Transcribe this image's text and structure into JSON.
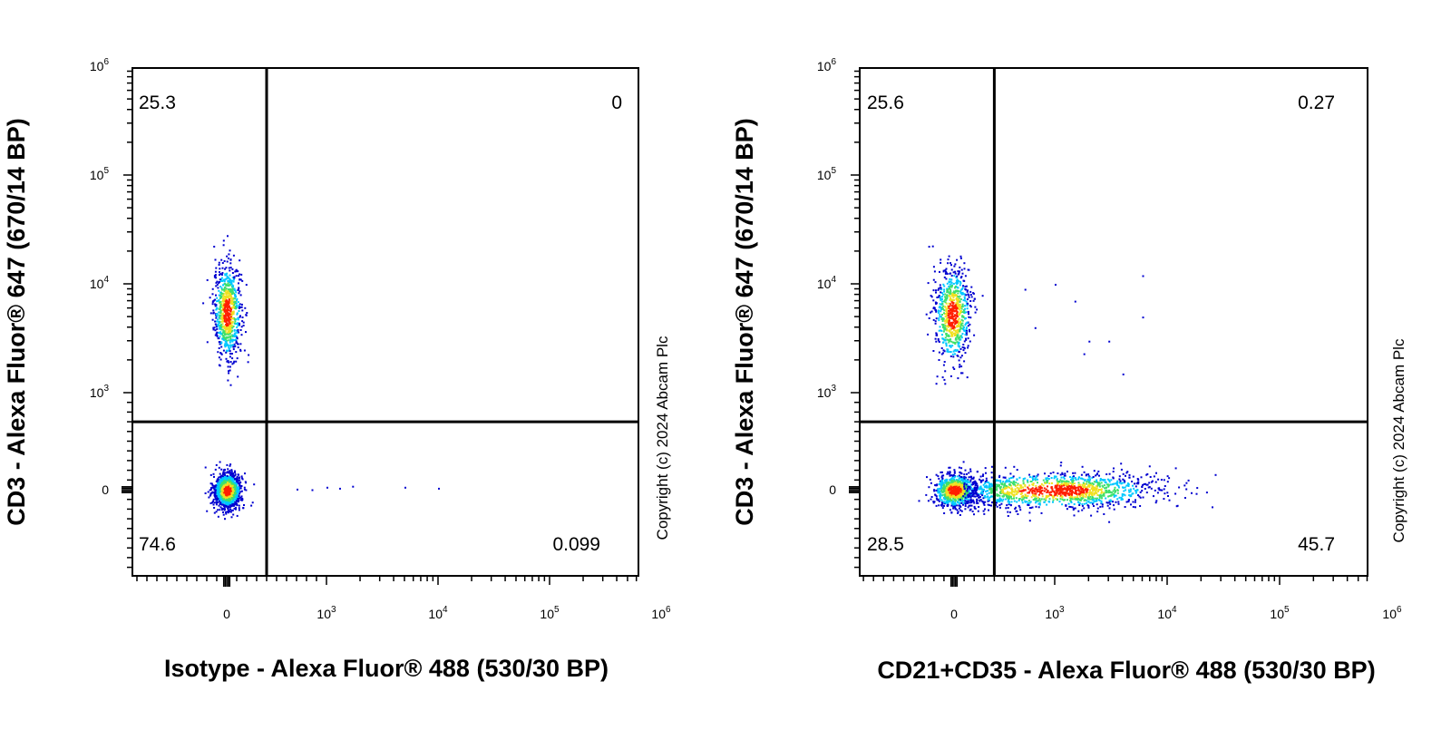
{
  "copyright": "Copyright (c) 2024 Abcam Plc",
  "colors": {
    "density_low": "#0000d0",
    "density_mid_low": "#00c8ff",
    "density_mid": "#3ee06a",
    "density_mid_high": "#f0e020",
    "density_high": "#ff1e00",
    "gate_line": "#000000"
  },
  "chart_data": [
    {
      "type": "scatter",
      "title": "",
      "xlabel": "Isotype - Alexa Fluor® 488 (530/30 BP)",
      "ylabel": "CD3 - Alexa Fluor® 647 (670/14 BP)",
      "scale": "biexponential",
      "x_ticks": [
        {
          "base": "0",
          "exp": ""
        },
        {
          "base": "10",
          "exp": "3"
        },
        {
          "base": "10",
          "exp": "4"
        },
        {
          "base": "10",
          "exp": "5"
        },
        {
          "base": "10",
          "exp": "6"
        }
      ],
      "y_ticks": [
        {
          "base": "0",
          "exp": ""
        },
        {
          "base": "10",
          "exp": "3"
        },
        {
          "base": "10",
          "exp": "4"
        },
        {
          "base": "10",
          "exp": "5"
        },
        {
          "base": "10",
          "exp": "6"
        }
      ],
      "gate": {
        "x": 400,
        "y": 700
      },
      "quadrants": {
        "upper_left": "25.3",
        "upper_right": "0",
        "lower_left": "74.6",
        "lower_right": "0.099"
      },
      "populations": [
        {
          "name": "cd3_positive",
          "x_center": 0,
          "x_spread": 70,
          "y_center_log": 3.75,
          "y_spread_log": 0.22,
          "n": 800
        },
        {
          "name": "cd3_negative",
          "x_center": 0,
          "x_spread": 70,
          "y_center": 0,
          "y_spread": 90,
          "n": 1100
        }
      ],
      "outliers": [
        [
          1000,
          30
        ],
        [
          1300,
          20
        ],
        [
          1700,
          40
        ],
        [
          5000,
          30
        ],
        [
          10000,
          20
        ],
        [
          700,
          10
        ],
        [
          850,
          5
        ]
      ]
    },
    {
      "type": "scatter",
      "title": "",
      "xlabel": "CD21+CD35 - Alexa Fluor® 488 (530/30 BP)",
      "ylabel": "CD3 - Alexa Fluor® 647 (670/14 BP)",
      "scale": "biexponential",
      "x_ticks": [
        {
          "base": "0",
          "exp": ""
        },
        {
          "base": "10",
          "exp": "3"
        },
        {
          "base": "10",
          "exp": "4"
        },
        {
          "base": "10",
          "exp": "5"
        },
        {
          "base": "10",
          "exp": "6"
        }
      ],
      "y_ticks": [
        {
          "base": "0",
          "exp": ""
        },
        {
          "base": "10",
          "exp": "3"
        },
        {
          "base": "10",
          "exp": "4"
        },
        {
          "base": "10",
          "exp": "5"
        },
        {
          "base": "10",
          "exp": "6"
        }
      ],
      "gate": {
        "x": 400,
        "y": 700
      },
      "quadrants": {
        "upper_left": "25.6",
        "upper_right": "0.27",
        "lower_left": "28.5",
        "lower_right": "45.7"
      },
      "populations": [
        {
          "name": "cd3_positive",
          "x_center": -20,
          "x_spread": 90,
          "y_center_log": 3.72,
          "y_spread_log": 0.22,
          "n": 750
        },
        {
          "name": "cd3_negative_cd21_negative",
          "x_center": 0,
          "x_spread": 110,
          "y_center": 0,
          "y_spread": 90,
          "n": 800
        },
        {
          "name": "cd21_positive",
          "x_center_log": 3.05,
          "x_spread_log": 0.42,
          "y_center": 0,
          "y_spread": 90,
          "n": 1400
        }
      ],
      "outliers": [
        [
          700,
          9000
        ],
        [
          1000,
          10000
        ],
        [
          1500,
          7000
        ],
        [
          6000,
          12000
        ],
        [
          6000,
          5000
        ],
        [
          2000,
          3000
        ],
        [
          3000,
          3000
        ],
        [
          1800,
          2300
        ],
        [
          4000,
          1500
        ],
        [
          800,
          4000
        ]
      ]
    }
  ]
}
